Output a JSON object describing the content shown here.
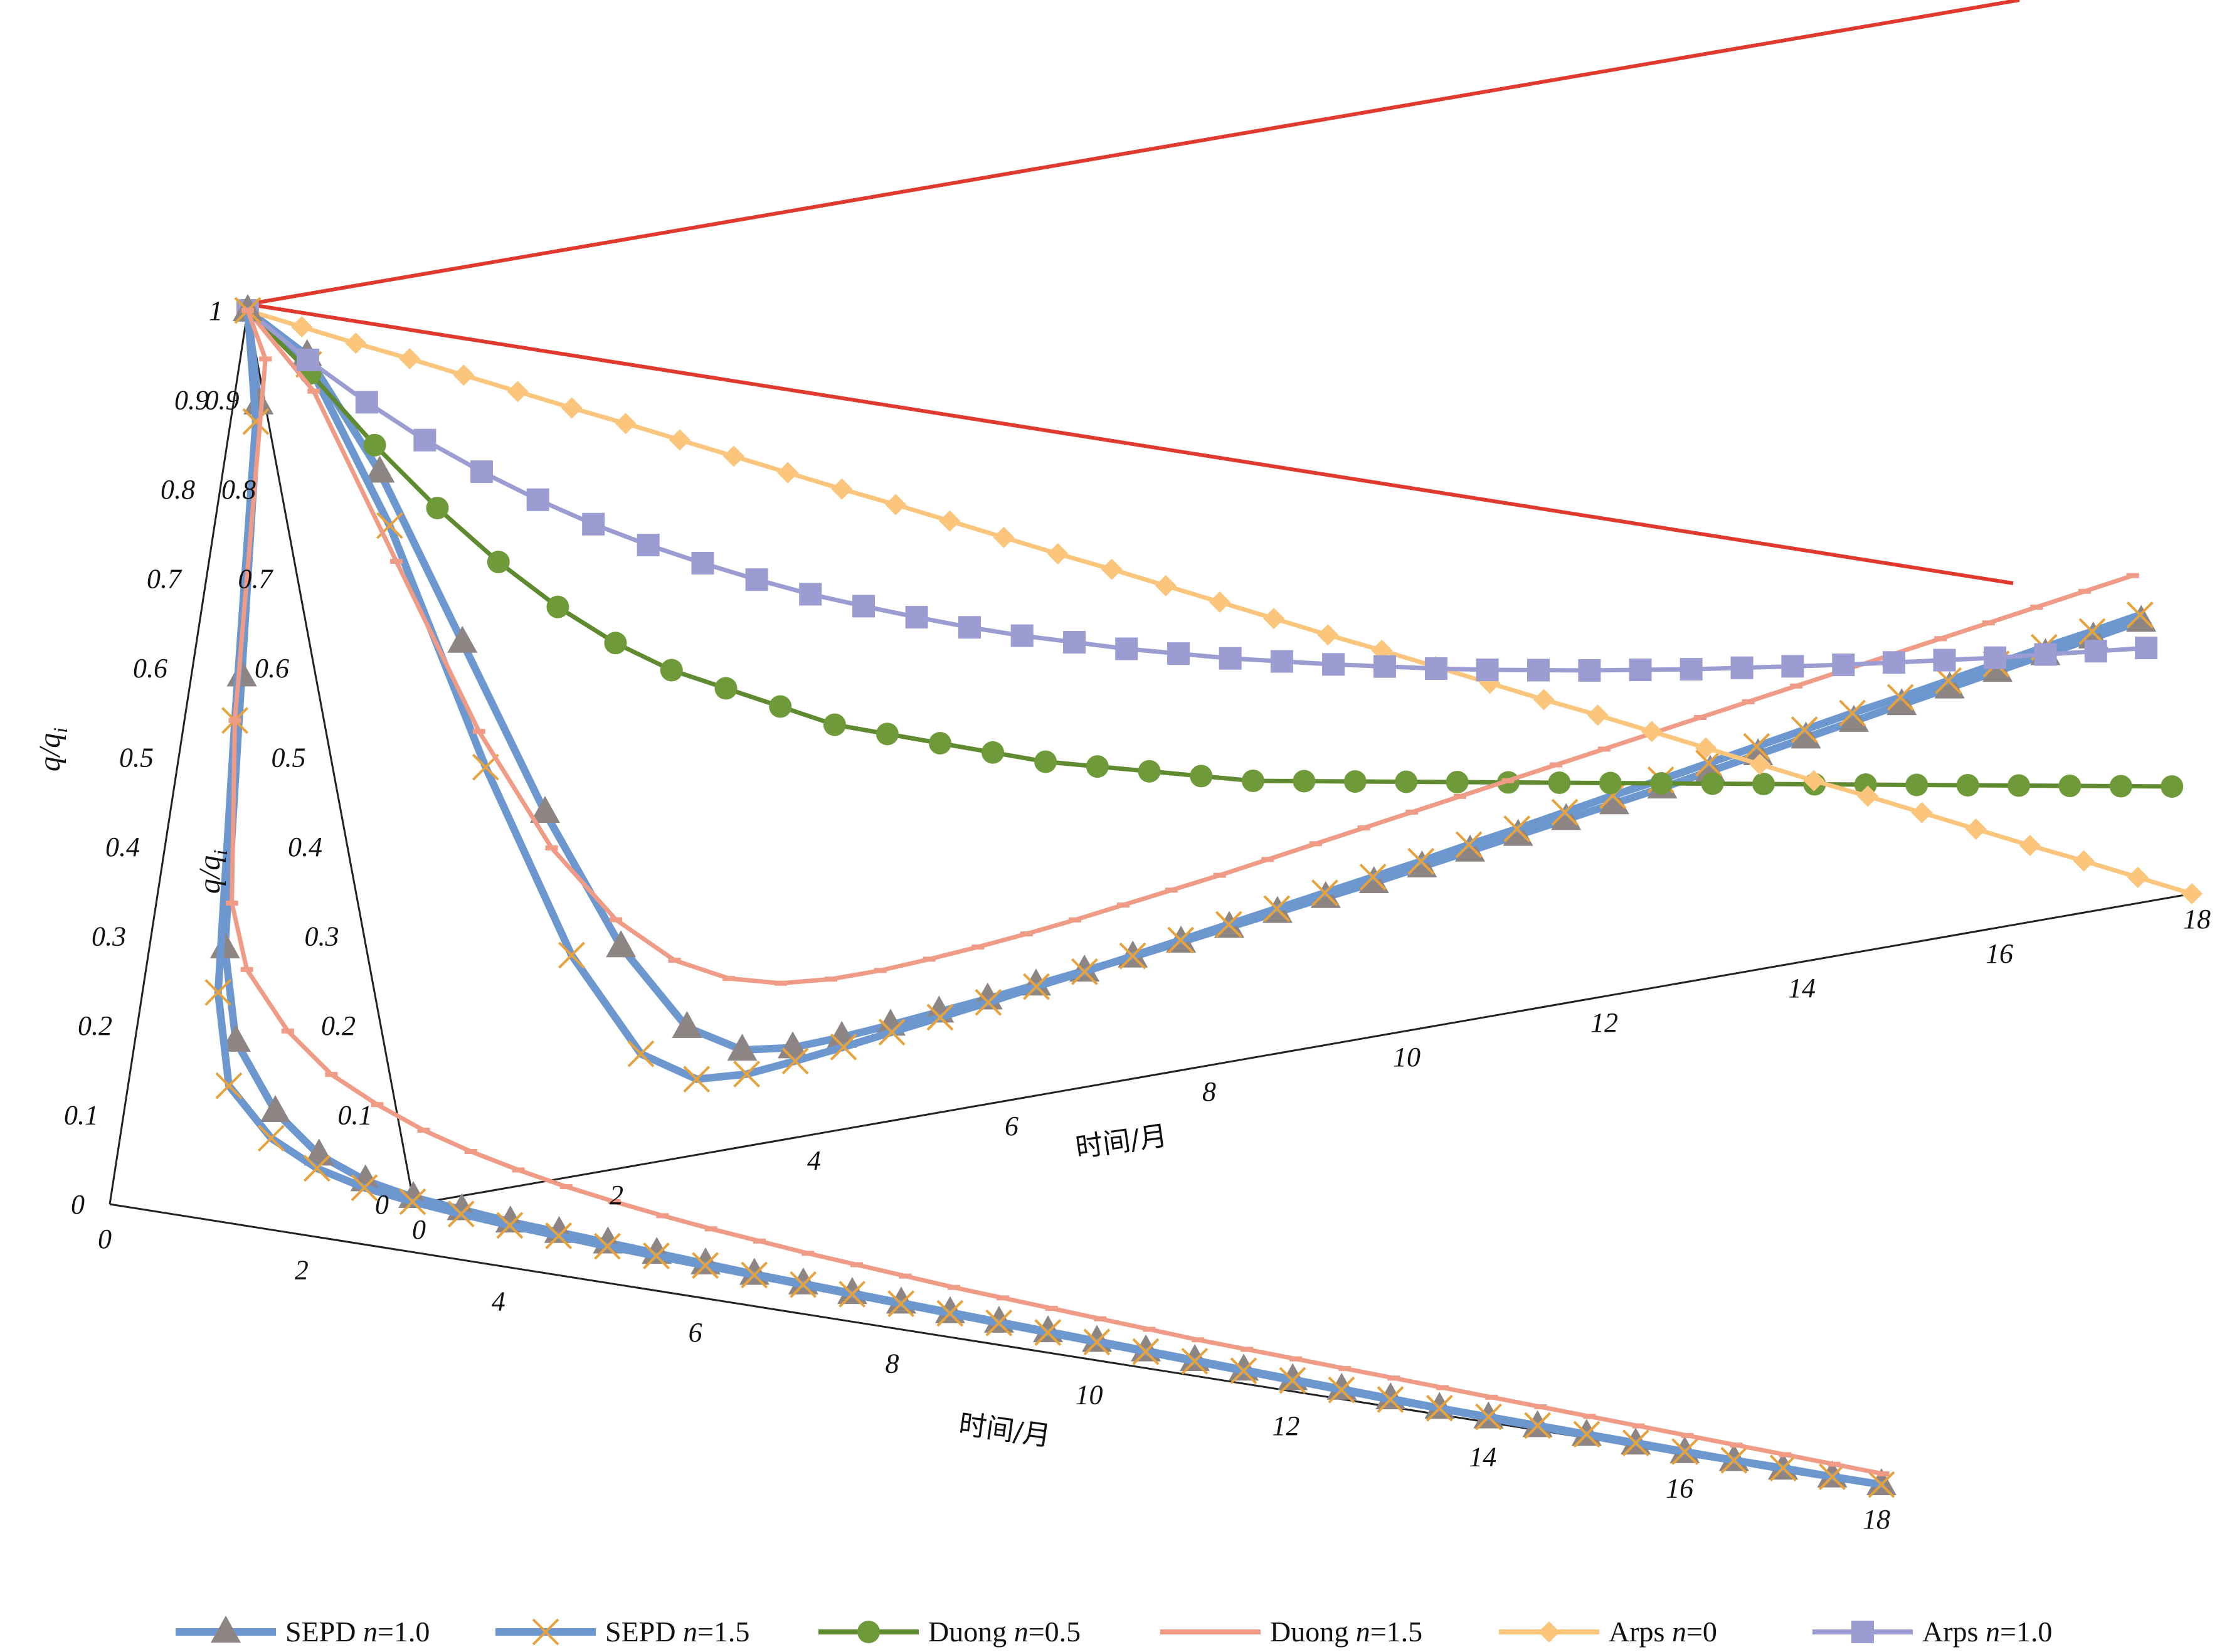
{
  "chart_data": {
    "type": "line",
    "x_axis_label": "时间/月",
    "y_axis_label": "q/q",
    "y_axis_label_sub": "i",
    "x_ticks": [
      0,
      2,
      4,
      6,
      8,
      10,
      12,
      14,
      16,
      18
    ],
    "y_ticks": [
      0,
      0.1,
      0.2,
      0.3,
      0.4,
      0.5,
      0.6,
      0.7,
      0.8,
      0.9,
      1
    ],
    "xlim": [
      0,
      18
    ],
    "ylim": [
      0,
      1
    ],
    "legend_position": "bottom",
    "legend": [
      {
        "label": "SEPD",
        "param": "n",
        "value": "=1.0"
      },
      {
        "label": "SEPD",
        "param": "n",
        "value": "=1.5"
      },
      {
        "label": "Duong",
        "param": "n",
        "value": "=0.5"
      },
      {
        "label": "Duong",
        "param": "n",
        "value": "=1.5"
      },
      {
        "label": "Arps",
        "param": "n",
        "value": "=0"
      },
      {
        "label": "Arps",
        "param": "n",
        "value": "=1.0"
      }
    ],
    "series_styles": [
      {
        "color": "#6d97cf",
        "marker": "triangle",
        "marker_color": "#8c8584"
      },
      {
        "color": "#6d97cf",
        "marker": "x",
        "marker_color": "#e8a23c"
      },
      {
        "color": "#5f8a30",
        "marker": "circle",
        "marker_color": "#6f9a3a"
      },
      {
        "color": "#ef9b85",
        "marker": "dash",
        "marker_color": "#ef9b85"
      },
      {
        "color": "#fbc57c",
        "marker": "diamond",
        "marker_color": "#fbc57c"
      },
      {
        "color": "#9a9cd2",
        "marker": "square",
        "marker_color": "#9a9cd2"
      }
    ],
    "back_panel": {
      "series": [
        {
          "name": "SEPD n=1.0",
          "x": [
            0,
            0.5,
            1,
            1.5,
            2,
            2.5,
            3,
            3.5,
            4,
            4.5,
            5,
            5.5,
            6,
            6.5,
            7,
            7.5,
            8,
            8.5,
            9,
            9.5,
            10,
            10.5,
            11,
            11.5,
            12,
            12.5,
            13,
            13.5,
            14,
            14.5,
            15,
            15.5,
            16,
            16.5,
            17,
            17.5,
            18
          ],
          "y": [
            1,
            0.94,
            0.8,
            0.6,
            0.4,
            0.24,
            0.14,
            0.105,
            0.098,
            0.1,
            0.104,
            0.109,
            0.114,
            0.12,
            0.126,
            0.132,
            0.139,
            0.146,
            0.153,
            0.16,
            0.167,
            0.175,
            0.183,
            0.191,
            0.199,
            0.207,
            0.215,
            0.224,
            0.233,
            0.242,
            0.251,
            0.26,
            0.269,
            0.278,
            0.287,
            0.296,
            0.305
          ]
        },
        {
          "name": "SEPD n=1.5",
          "x": [
            0,
            0.5,
            1,
            1.5,
            2,
            2.5,
            3,
            3.5,
            4,
            4.5,
            5,
            5.5,
            6,
            6.5,
            7,
            7.5,
            8,
            8.5,
            9,
            9.5,
            10,
            10.5,
            11,
            11.5,
            12,
            12.5,
            13,
            13.5,
            14,
            14.5,
            15,
            15.5,
            16,
            16.5,
            17,
            17.5,
            18
          ],
          "y": [
            1,
            0.93,
            0.74,
            0.46,
            0.24,
            0.12,
            0.082,
            0.078,
            0.083,
            0.089,
            0.096,
            0.103,
            0.11,
            0.118,
            0.125,
            0.133,
            0.141,
            0.149,
            0.157,
            0.165,
            0.173,
            0.181,
            0.19,
            0.198,
            0.207,
            0.216,
            0.224,
            0.233,
            0.242,
            0.251,
            0.26,
            0.268,
            0.277,
            0.286,
            0.295,
            0.303,
            0.312
          ]
        },
        {
          "name": "Duong n=0.5",
          "x": [
            0,
            0.5,
            1,
            1.5,
            2,
            2.5,
            3,
            3.5,
            4,
            4.5,
            5,
            5.5,
            6,
            6.5,
            7,
            7.5,
            8,
            8.5,
            9,
            9.5,
            10,
            10.5,
            11,
            11.5,
            12,
            12.5,
            13,
            13.5,
            14,
            14.5,
            15,
            15.5,
            16,
            16.5,
            17,
            17.5,
            18
          ],
          "y": [
            1,
            0.92,
            0.83,
            0.75,
            0.68,
            0.62,
            0.57,
            0.53,
            0.5,
            0.47,
            0.44,
            0.42,
            0.4,
            0.38,
            0.36,
            0.345,
            0.33,
            0.315,
            0.3,
            0.29,
            0.28,
            0.27,
            0.26,
            0.25,
            0.24,
            0.23,
            0.22,
            0.21,
            0.2,
            0.19,
            0.18,
            0.17,
            0.16,
            0.15,
            0.14,
            0.13,
            0.12
          ]
        },
        {
          "name": "Duong n=1.5",
          "x": [
            0,
            0.5,
            1,
            1.5,
            2,
            2.5,
            3,
            3.5,
            4,
            4.5,
            5,
            5.5,
            6,
            6.5,
            7,
            7.5,
            8,
            8.5,
            9,
            9.5,
            10,
            10.5,
            11,
            11.5,
            12,
            12.5,
            13,
            13.5,
            14,
            14.5,
            15,
            15.5,
            16,
            16.5,
            17,
            17.5,
            18
          ],
          "y": [
            1,
            0.9,
            0.7,
            0.5,
            0.36,
            0.27,
            0.215,
            0.185,
            0.17,
            0.165,
            0.165,
            0.168,
            0.172,
            0.177,
            0.183,
            0.19,
            0.197,
            0.204,
            0.212,
            0.22,
            0.228,
            0.236,
            0.244,
            0.252,
            0.26,
            0.268,
            0.276,
            0.284,
            0.292,
            0.3,
            0.308,
            0.316,
            0.324,
            0.332,
            0.34,
            0.348,
            0.356
          ]
        },
        {
          "name": "Arps n=0",
          "x": [
            0,
            0.5,
            1,
            1.5,
            2,
            2.5,
            3,
            3.5,
            4,
            4.5,
            5,
            5.5,
            6,
            6.5,
            7,
            7.5,
            8,
            8.5,
            9,
            9.5,
            10,
            10.5,
            11,
            11.5,
            12,
            12.5,
            13,
            13.5,
            14,
            14.5,
            15,
            15.5,
            16,
            16.5,
            17,
            17.5,
            18
          ],
          "y": [
            1,
            0.972,
            0.944,
            0.917,
            0.889,
            0.861,
            0.833,
            0.806,
            0.778,
            0.75,
            0.722,
            0.694,
            0.667,
            0.639,
            0.611,
            0.583,
            0.556,
            0.528,
            0.5,
            0.472,
            0.444,
            0.417,
            0.389,
            0.361,
            0.333,
            0.306,
            0.278,
            0.25,
            0.222,
            0.194,
            0.167,
            0.139,
            0.111,
            0.083,
            0.056,
            0.028,
            0.0
          ]
        },
        {
          "name": "Arps n=1.0",
          "x": [
            0,
            0.5,
            1,
            1.5,
            2,
            2.5,
            3,
            3.5,
            4,
            4.5,
            5,
            5.5,
            6,
            6.5,
            7,
            7.5,
            8,
            8.5,
            9,
            9.5,
            10,
            10.5,
            11,
            11.5,
            12,
            12.5,
            13,
            13.5,
            14,
            14.5,
            15,
            15.5,
            16,
            16.5,
            17,
            17.5,
            18
          ],
          "y": [
            1,
            0.935,
            0.878,
            0.826,
            0.781,
            0.74,
            0.703,
            0.67,
            0.64,
            0.612,
            0.586,
            0.563,
            0.541,
            0.52,
            0.501,
            0.484,
            0.467,
            0.452,
            0.437,
            0.424,
            0.411,
            0.399,
            0.387,
            0.376,
            0.366,
            0.356,
            0.347,
            0.338,
            0.33,
            0.322,
            0.314,
            0.307,
            0.3,
            0.293,
            0.287,
            0.281,
            0.275
          ]
        }
      ]
    },
    "front_panel": {
      "series": [
        {
          "name": "SEPD n=1.0",
          "x": [
            0,
            0.25,
            0.5,
            0.75,
            1,
            1.5,
            2,
            2.5,
            3,
            3.5,
            4,
            4.5,
            5,
            5.5,
            6,
            6.5,
            7,
            7.5,
            8,
            8.5,
            9,
            9.5,
            10,
            10.5,
            11,
            11.5,
            12,
            12.5,
            13,
            13.5,
            14,
            14.5,
            15,
            15.5,
            16,
            16.5,
            17,
            17.5,
            18
          ],
          "y": [
            1,
            0.9,
            0.6,
            0.3,
            0.2,
            0.13,
            0.09,
            0.07,
            0.06,
            0.055,
            0.05,
            0.047,
            0.044,
            0.041,
            0.038,
            0.035,
            0.033,
            0.031,
            0.029,
            0.027,
            0.025,
            0.023,
            0.021,
            0.019,
            0.017,
            0.015,
            0.013,
            0.011,
            0.009,
            0.007,
            0.005,
            0.004,
            0.003,
            0.002,
            0.001,
            0.001,
            0.0,
            0.0,
            0.0
          ]
        },
        {
          "name": "SEPD n=1.5",
          "x": [
            0,
            0.25,
            0.5,
            0.75,
            1,
            1.5,
            2,
            2.5,
            3,
            3.5,
            4,
            4.5,
            5,
            5.5,
            6,
            6.5,
            7,
            7.5,
            8,
            8.5,
            9,
            9.5,
            10,
            10.5,
            11,
            11.5,
            12,
            12.5,
            13,
            13.5,
            14,
            14.5,
            15,
            15.5,
            16,
            16.5,
            17,
            17.5,
            18
          ],
          "y": [
            1,
            0.88,
            0.55,
            0.25,
            0.15,
            0.1,
            0.075,
            0.062,
            0.055,
            0.05,
            0.046,
            0.043,
            0.04,
            0.038,
            0.036,
            0.034,
            0.032,
            0.03,
            0.028,
            0.026,
            0.024,
            0.022,
            0.02,
            0.018,
            0.016,
            0.014,
            0.012,
            0.01,
            0.008,
            0.007,
            0.006,
            0.005,
            0.004,
            0.003,
            0.002,
            0.001,
            0.001,
            0.0,
            0.0
          ]
        },
        {
          "name": "Duong n=1.5",
          "x": [
            0,
            0.25,
            0.5,
            0.75,
            1,
            1.5,
            2,
            2.5,
            3,
            3.5,
            4,
            4.5,
            5,
            5.5,
            6,
            6.5,
            7,
            7.5,
            8,
            8.5,
            9,
            9.5,
            10,
            10.5,
            11,
            11.5,
            12,
            12.5,
            13,
            13.5,
            14,
            14.5,
            15,
            15.5,
            16,
            16.5,
            17,
            17.5,
            18
          ],
          "y": [
            1,
            0.95,
            0.55,
            0.35,
            0.28,
            0.22,
            0.18,
            0.155,
            0.135,
            0.12,
            0.108,
            0.098,
            0.09,
            0.083,
            0.077,
            0.072,
            0.067,
            0.063,
            0.059,
            0.055,
            0.052,
            0.049,
            0.046,
            0.043,
            0.04,
            0.038,
            0.036,
            0.034,
            0.032,
            0.03,
            0.028,
            0.026,
            0.024,
            0.022,
            0.02,
            0.018,
            0.016,
            0.014,
            0.012
          ]
        }
      ]
    }
  }
}
